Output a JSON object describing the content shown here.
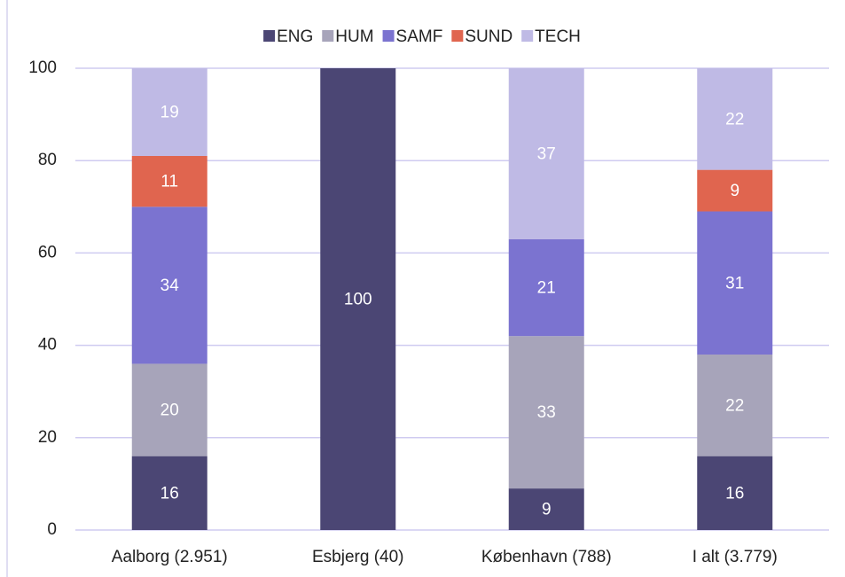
{
  "chart_data": {
    "type": "stacked_bar",
    "categories": [
      "Aalborg (2.951)",
      "Esbjerg (40)",
      "København (788)",
      "I alt (3.779)"
    ],
    "series": [
      {
        "name": "ENG",
        "color": "#4b4674",
        "values": [
          16,
          100,
          9,
          16
        ]
      },
      {
        "name": "HUM",
        "color": "#a7a4ba",
        "values": [
          20,
          0,
          33,
          22
        ]
      },
      {
        "name": "SAMF",
        "color": "#7b73d0",
        "values": [
          34,
          0,
          21,
          31
        ]
      },
      {
        "name": "SUND",
        "color": "#e0654f",
        "values": [
          11,
          0,
          0,
          9
        ]
      },
      {
        "name": "TECH",
        "color": "#bfbae5",
        "values": [
          19,
          0,
          37,
          22
        ]
      }
    ],
    "ylim": [
      0,
      100
    ],
    "yticks": [
      0,
      20,
      40,
      60,
      80,
      100
    ],
    "grid": true,
    "legend": "top"
  }
}
